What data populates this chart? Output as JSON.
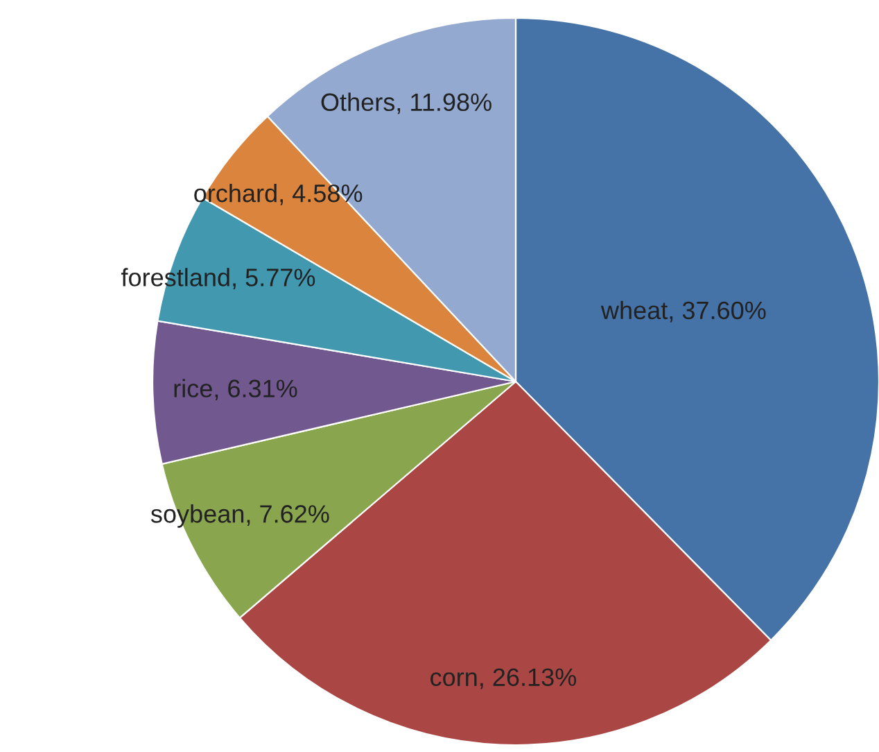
{
  "chart_data": {
    "type": "pie",
    "categories": [
      "wheat",
      "corn",
      "soybean",
      "rice",
      "forestland",
      "orchard",
      "Others"
    ],
    "values": [
      37.6,
      26.13,
      7.62,
      6.31,
      5.77,
      4.58,
      11.98
    ],
    "colors": [
      "#4572a7",
      "#aa4643",
      "#89a54e",
      "#71588f",
      "#4198af",
      "#db843d",
      "#93a9cf"
    ],
    "value_labels": [
      "37.60%",
      "26.13%",
      "7.62%",
      "6.31%",
      "5.77%",
      "4.58%",
      "11.98%"
    ],
    "legend": false
  }
}
